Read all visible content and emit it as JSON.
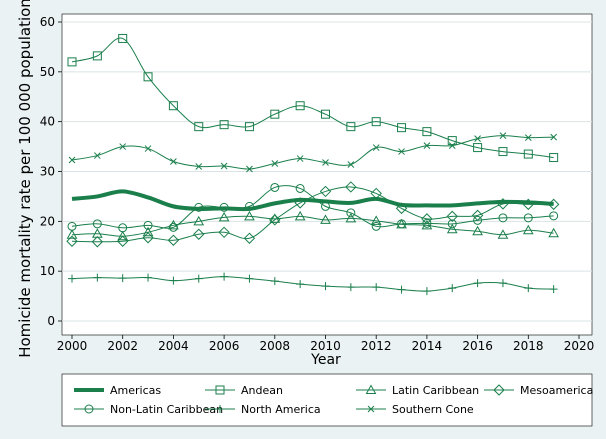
{
  "chart_data": {
    "type": "line",
    "title": "",
    "xlabel": "Year",
    "ylabel": "Homicide mortality rate per 100 000 population",
    "xlim": [
      2000,
      2020
    ],
    "ylim": [
      0,
      60
    ],
    "x_ticks": [
      2000,
      2002,
      2004,
      2006,
      2008,
      2010,
      2012,
      2014,
      2016,
      2018,
      2020
    ],
    "y_ticks": [
      0,
      10,
      20,
      30,
      40,
      50,
      60
    ],
    "grid": true,
    "legend_position": "bottom",
    "x": [
      2000,
      2001,
      2002,
      2003,
      2004,
      2005,
      2006,
      2007,
      2008,
      2009,
      2010,
      2011,
      2012,
      2013,
      2014,
      2015,
      2016,
      2017,
      2018,
      2019
    ],
    "series": [
      {
        "name": "Americas",
        "marker": "none",
        "bold": true,
        "values": [
          24.5,
          25.0,
          26.0,
          24.8,
          23.0,
          22.5,
          22.6,
          22.5,
          23.6,
          24.3,
          24.0,
          23.7,
          24.5,
          23.3,
          23.2,
          23.2,
          23.6,
          23.9,
          23.8,
          23.5
        ]
      },
      {
        "name": "Andean",
        "marker": "square",
        "values": [
          52.0,
          53.2,
          56.7,
          49.0,
          43.2,
          39.0,
          39.4,
          39.0,
          41.5,
          43.2,
          41.5,
          39.0,
          40.0,
          38.8,
          38.0,
          36.2,
          34.8,
          34.0,
          33.5,
          32.8
        ]
      },
      {
        "name": "Latin Caribbean",
        "marker": "triangle",
        "values": [
          17.3,
          17.5,
          17.0,
          17.8,
          19.2,
          20.0,
          20.8,
          21.0,
          20.5,
          21.0,
          20.3,
          20.6,
          20.1,
          19.4,
          19.2,
          18.4,
          18.0,
          17.3,
          18.2,
          17.6
        ]
      },
      {
        "name": "Mesoamerica",
        "marker": "diamond",
        "values": [
          16.0,
          15.9,
          16.0,
          16.7,
          16.2,
          17.4,
          17.8,
          16.6,
          20.3,
          23.7,
          26.0,
          26.9,
          25.6,
          22.6,
          20.5,
          21.0,
          21.2,
          23.5,
          23.4,
          23.4
        ]
      },
      {
        "name": "Non-Latin Caribbean",
        "marker": "circle",
        "values": [
          19.0,
          19.5,
          18.7,
          19.2,
          18.8,
          22.8,
          22.8,
          23.0,
          26.8,
          26.6,
          23.0,
          21.7,
          19.0,
          19.5,
          19.6,
          19.5,
          20.2,
          20.7,
          20.7,
          21.1
        ]
      },
      {
        "name": "North America",
        "marker": "plus",
        "values": [
          8.5,
          8.7,
          8.6,
          8.7,
          8.1,
          8.5,
          8.9,
          8.5,
          8.0,
          7.4,
          7.0,
          6.8,
          6.8,
          6.3,
          6.0,
          6.6,
          7.6,
          7.6,
          6.6,
          6.4
        ]
      },
      {
        "name": "Southern Cone",
        "marker": "x",
        "values": [
          32.3,
          33.2,
          35.0,
          34.6,
          32.0,
          31.0,
          31.1,
          30.5,
          31.6,
          32.6,
          31.8,
          31.4,
          34.8,
          34.0,
          35.2,
          35.2,
          36.6,
          37.2,
          36.8,
          36.9
        ]
      }
    ],
    "color": "#1a7f4b",
    "background": "#eaf2f3"
  }
}
